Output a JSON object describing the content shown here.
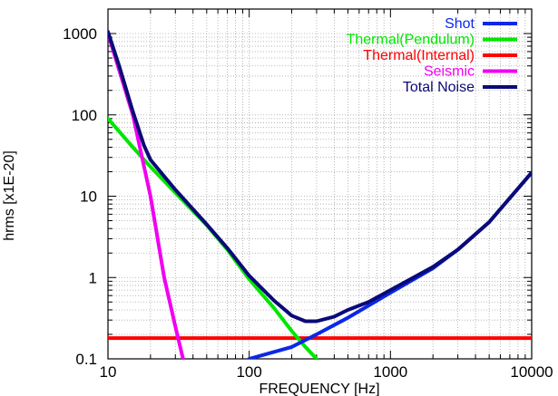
{
  "chart_data": {
    "type": "line",
    "title": "",
    "xlabel": "FREQUENCY [Hz]",
    "ylabel": "hrms [x1E-20]",
    "xscale": "log",
    "yscale": "log",
    "xlim": [
      10,
      10000
    ],
    "ylim": [
      0.1,
      2000
    ],
    "x_ticks": [
      {
        "value": 10,
        "label": "10"
      },
      {
        "value": 100,
        "label": "100"
      },
      {
        "value": 1000,
        "label": "1000"
      },
      {
        "value": 10000,
        "label": "10000"
      }
    ],
    "y_ticks": [
      {
        "value": 0.1,
        "label": "0.1"
      },
      {
        "value": 1,
        "label": "1"
      },
      {
        "value": 10,
        "label": "10"
      },
      {
        "value": 100,
        "label": "100"
      },
      {
        "value": 1000,
        "label": "1000"
      }
    ],
    "grid": true,
    "legend_position": "top-right",
    "series": [
      {
        "name": "Shot",
        "color": "#0a28e6",
        "points": [
          [
            100,
            0.1
          ],
          [
            200,
            0.14
          ],
          [
            300,
            0.2
          ],
          [
            500,
            0.32
          ],
          [
            1000,
            0.65
          ],
          [
            2000,
            1.3
          ],
          [
            3000,
            2.2
          ],
          [
            5000,
            4.8
          ],
          [
            10000,
            19.5
          ]
        ]
      },
      {
        "name": "Thermal(Pendulum)",
        "color": "#00e600",
        "points": [
          [
            10,
            90
          ],
          [
            15,
            40
          ],
          [
            20,
            23
          ],
          [
            30,
            11
          ],
          [
            50,
            4.4
          ],
          [
            70,
            2.2
          ],
          [
            100,
            0.95
          ],
          [
            150,
            0.42
          ],
          [
            200,
            0.22
          ],
          [
            250,
            0.14
          ],
          [
            300,
            0.1
          ]
        ]
      },
      {
        "name": "Thermal(Internal)",
        "color": "#ff0000",
        "points": [
          [
            10,
            0.18
          ],
          [
            10000,
            0.18
          ]
        ]
      },
      {
        "name": "Seismic",
        "color": "#f000f0",
        "points": [
          [
            10,
            1000
          ],
          [
            15,
            100
          ],
          [
            20,
            10
          ],
          [
            25,
            1
          ],
          [
            30,
            0.25
          ],
          [
            34,
            0.1
          ]
        ]
      },
      {
        "name": "Total Noise",
        "color": "#0a0a78",
        "points": [
          [
            10,
            1050
          ],
          [
            12,
            400
          ],
          [
            15,
            110
          ],
          [
            18,
            42
          ],
          [
            20,
            28
          ],
          [
            30,
            12
          ],
          [
            50,
            4.5
          ],
          [
            70,
            2.3
          ],
          [
            100,
            1.05
          ],
          [
            150,
            0.52
          ],
          [
            200,
            0.34
          ],
          [
            250,
            0.29
          ],
          [
            300,
            0.29
          ],
          [
            400,
            0.33
          ],
          [
            500,
            0.4
          ],
          [
            700,
            0.5
          ],
          [
            1000,
            0.7
          ],
          [
            2000,
            1.35
          ],
          [
            3000,
            2.2
          ],
          [
            5000,
            4.8
          ],
          [
            10000,
            19.5
          ]
        ]
      }
    ]
  }
}
